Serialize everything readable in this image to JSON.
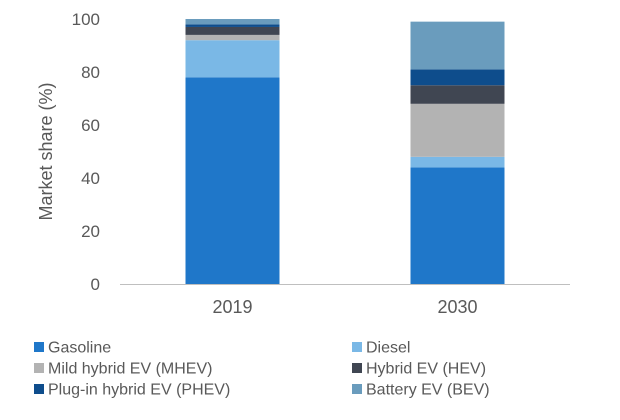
{
  "chart_data": {
    "type": "bar",
    "stacked": true,
    "categories": [
      "2019",
      "2030"
    ],
    "series": [
      {
        "name": "Gasoline",
        "color": "#1f77c9",
        "values": [
          78,
          44
        ]
      },
      {
        "name": "Diesel",
        "color": "#7ab8e6",
        "values": [
          14,
          4
        ]
      },
      {
        "name": "Mild hybrid EV (MHEV)",
        "color": "#b3b3b3",
        "values": [
          2,
          20
        ]
      },
      {
        "name": "Hybrid EV (HEV)",
        "color": "#404652",
        "values": [
          3,
          7
        ]
      },
      {
        "name": "Plug-in hybrid EV (PHEV)",
        "color": "#0e4d8c",
        "values": [
          1,
          6
        ]
      },
      {
        "name": "Battery EV (BEV)",
        "color": "#6a9cbd",
        "values": [
          2,
          18
        ]
      }
    ],
    "title": "",
    "xlabel": "",
    "ylabel": "Market share (%)",
    "ylim": [
      0,
      100
    ],
    "yticks": [
      "0",
      "20",
      "40",
      "60",
      "80",
      "100"
    ],
    "grid": false,
    "legend_position": "bottom"
  }
}
